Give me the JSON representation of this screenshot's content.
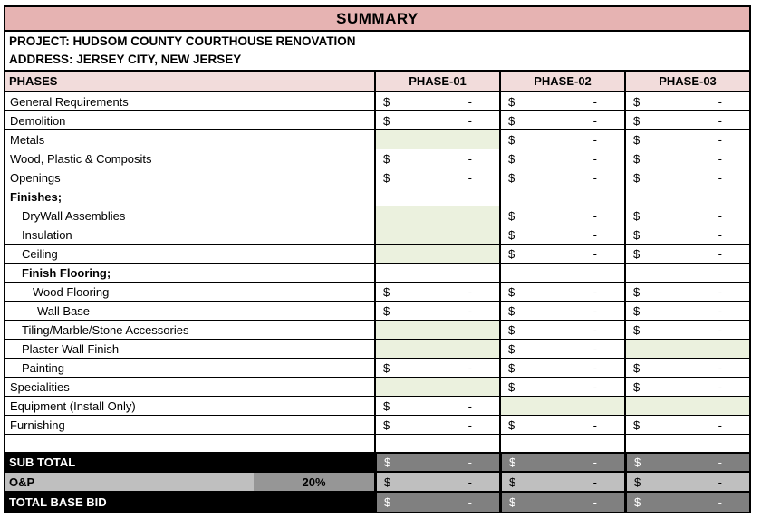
{
  "header": {
    "title": "SUMMARY",
    "project": "PROJECT: HUDSOM COUNTY COURTHOUSE RENOVATION",
    "address": "ADDRESS: JERSEY CITY, NEW JERSEY"
  },
  "table": {
    "columns": [
      "PHASES",
      "PHASE-01",
      "PHASE-02",
      "PHASE-03"
    ],
    "currency_symbol": "$",
    "empty_value": "-",
    "rows": [
      {
        "label": "General Requirements",
        "bold": false,
        "indent": 0,
        "cells": [
          "dollar",
          "dollar",
          "dollar"
        ]
      },
      {
        "label": "Demolition",
        "bold": false,
        "indent": 0,
        "cells": [
          "dollar",
          "dollar",
          "dollar"
        ]
      },
      {
        "label": "Metals",
        "bold": false,
        "indent": 0,
        "cells": [
          "green",
          "dollar",
          "dollar"
        ]
      },
      {
        "label": "Wood, Plastic & Composits",
        "bold": false,
        "indent": 0,
        "cells": [
          "dollar",
          "dollar",
          "dollar"
        ]
      },
      {
        "label": "Openings",
        "bold": false,
        "indent": 0,
        "cells": [
          "dollar",
          "dollar",
          "dollar"
        ]
      },
      {
        "label": "Finishes;",
        "bold": true,
        "indent": 0,
        "cells": [
          "blank",
          "blank",
          "blank"
        ]
      },
      {
        "label": "DryWall Assemblies",
        "bold": false,
        "indent": 1,
        "cells": [
          "green",
          "dollar",
          "dollar"
        ]
      },
      {
        "label": "Insulation",
        "bold": false,
        "indent": 1,
        "cells": [
          "green",
          "dollar",
          "dollar"
        ]
      },
      {
        "label": "Ceiling",
        "bold": false,
        "indent": 1,
        "cells": [
          "green",
          "dollar",
          "dollar"
        ]
      },
      {
        "label": "Finish Flooring;",
        "bold": true,
        "indent": 1,
        "cells": [
          "blank",
          "blank",
          "blank"
        ]
      },
      {
        "label": "Wood Flooring",
        "bold": false,
        "indent": 2,
        "cells": [
          "dollar",
          "dollar",
          "dollar"
        ]
      },
      {
        "label": "Wall Base",
        "bold": false,
        "indent": 3,
        "cells": [
          "dollar",
          "dollar",
          "dollar"
        ]
      },
      {
        "label": "Tiling/Marble/Stone Accessories",
        "bold": false,
        "indent": 1,
        "cells": [
          "green",
          "dollar",
          "dollar"
        ]
      },
      {
        "label": "Plaster Wall Finish",
        "bold": false,
        "indent": 1,
        "cells": [
          "green",
          "dollar",
          "green"
        ]
      },
      {
        "label": "Painting",
        "bold": false,
        "indent": 1,
        "cells": [
          "dollar",
          "dollar",
          "dollar"
        ]
      },
      {
        "label": "Specialities",
        "bold": false,
        "indent": 0,
        "cells": [
          "green",
          "dollar",
          "dollar"
        ]
      },
      {
        "label": "Equipment (Install Only)",
        "bold": false,
        "indent": 0,
        "cells": [
          "dollar",
          "green",
          "green"
        ]
      },
      {
        "label": "Furnishing",
        "bold": false,
        "indent": 0,
        "cells": [
          "dollar",
          "dollar",
          "dollar"
        ]
      }
    ]
  },
  "totals": {
    "sub_total": {
      "label": "SUB TOTAL",
      "cells": [
        "dollar",
        "dollar",
        "dollar"
      ]
    },
    "o_and_p": {
      "label": "O&P",
      "rate": "20%",
      "cells": [
        "dollar",
        "dollar",
        "dollar"
      ]
    },
    "total_base_bid": {
      "label": "TOTAL BASE BID",
      "cells": [
        "dollar",
        "dollar",
        "dollar"
      ]
    }
  },
  "colors": {
    "banner_pink": "#E6B3B2",
    "header_pink": "#F2DCDB",
    "green_cell": "#EBF1DE",
    "section_black": "#000000",
    "dark_gray_cell": "#808080",
    "rate_gray_cell": "#969696",
    "light_gray_cell": "#BFBFBF"
  }
}
